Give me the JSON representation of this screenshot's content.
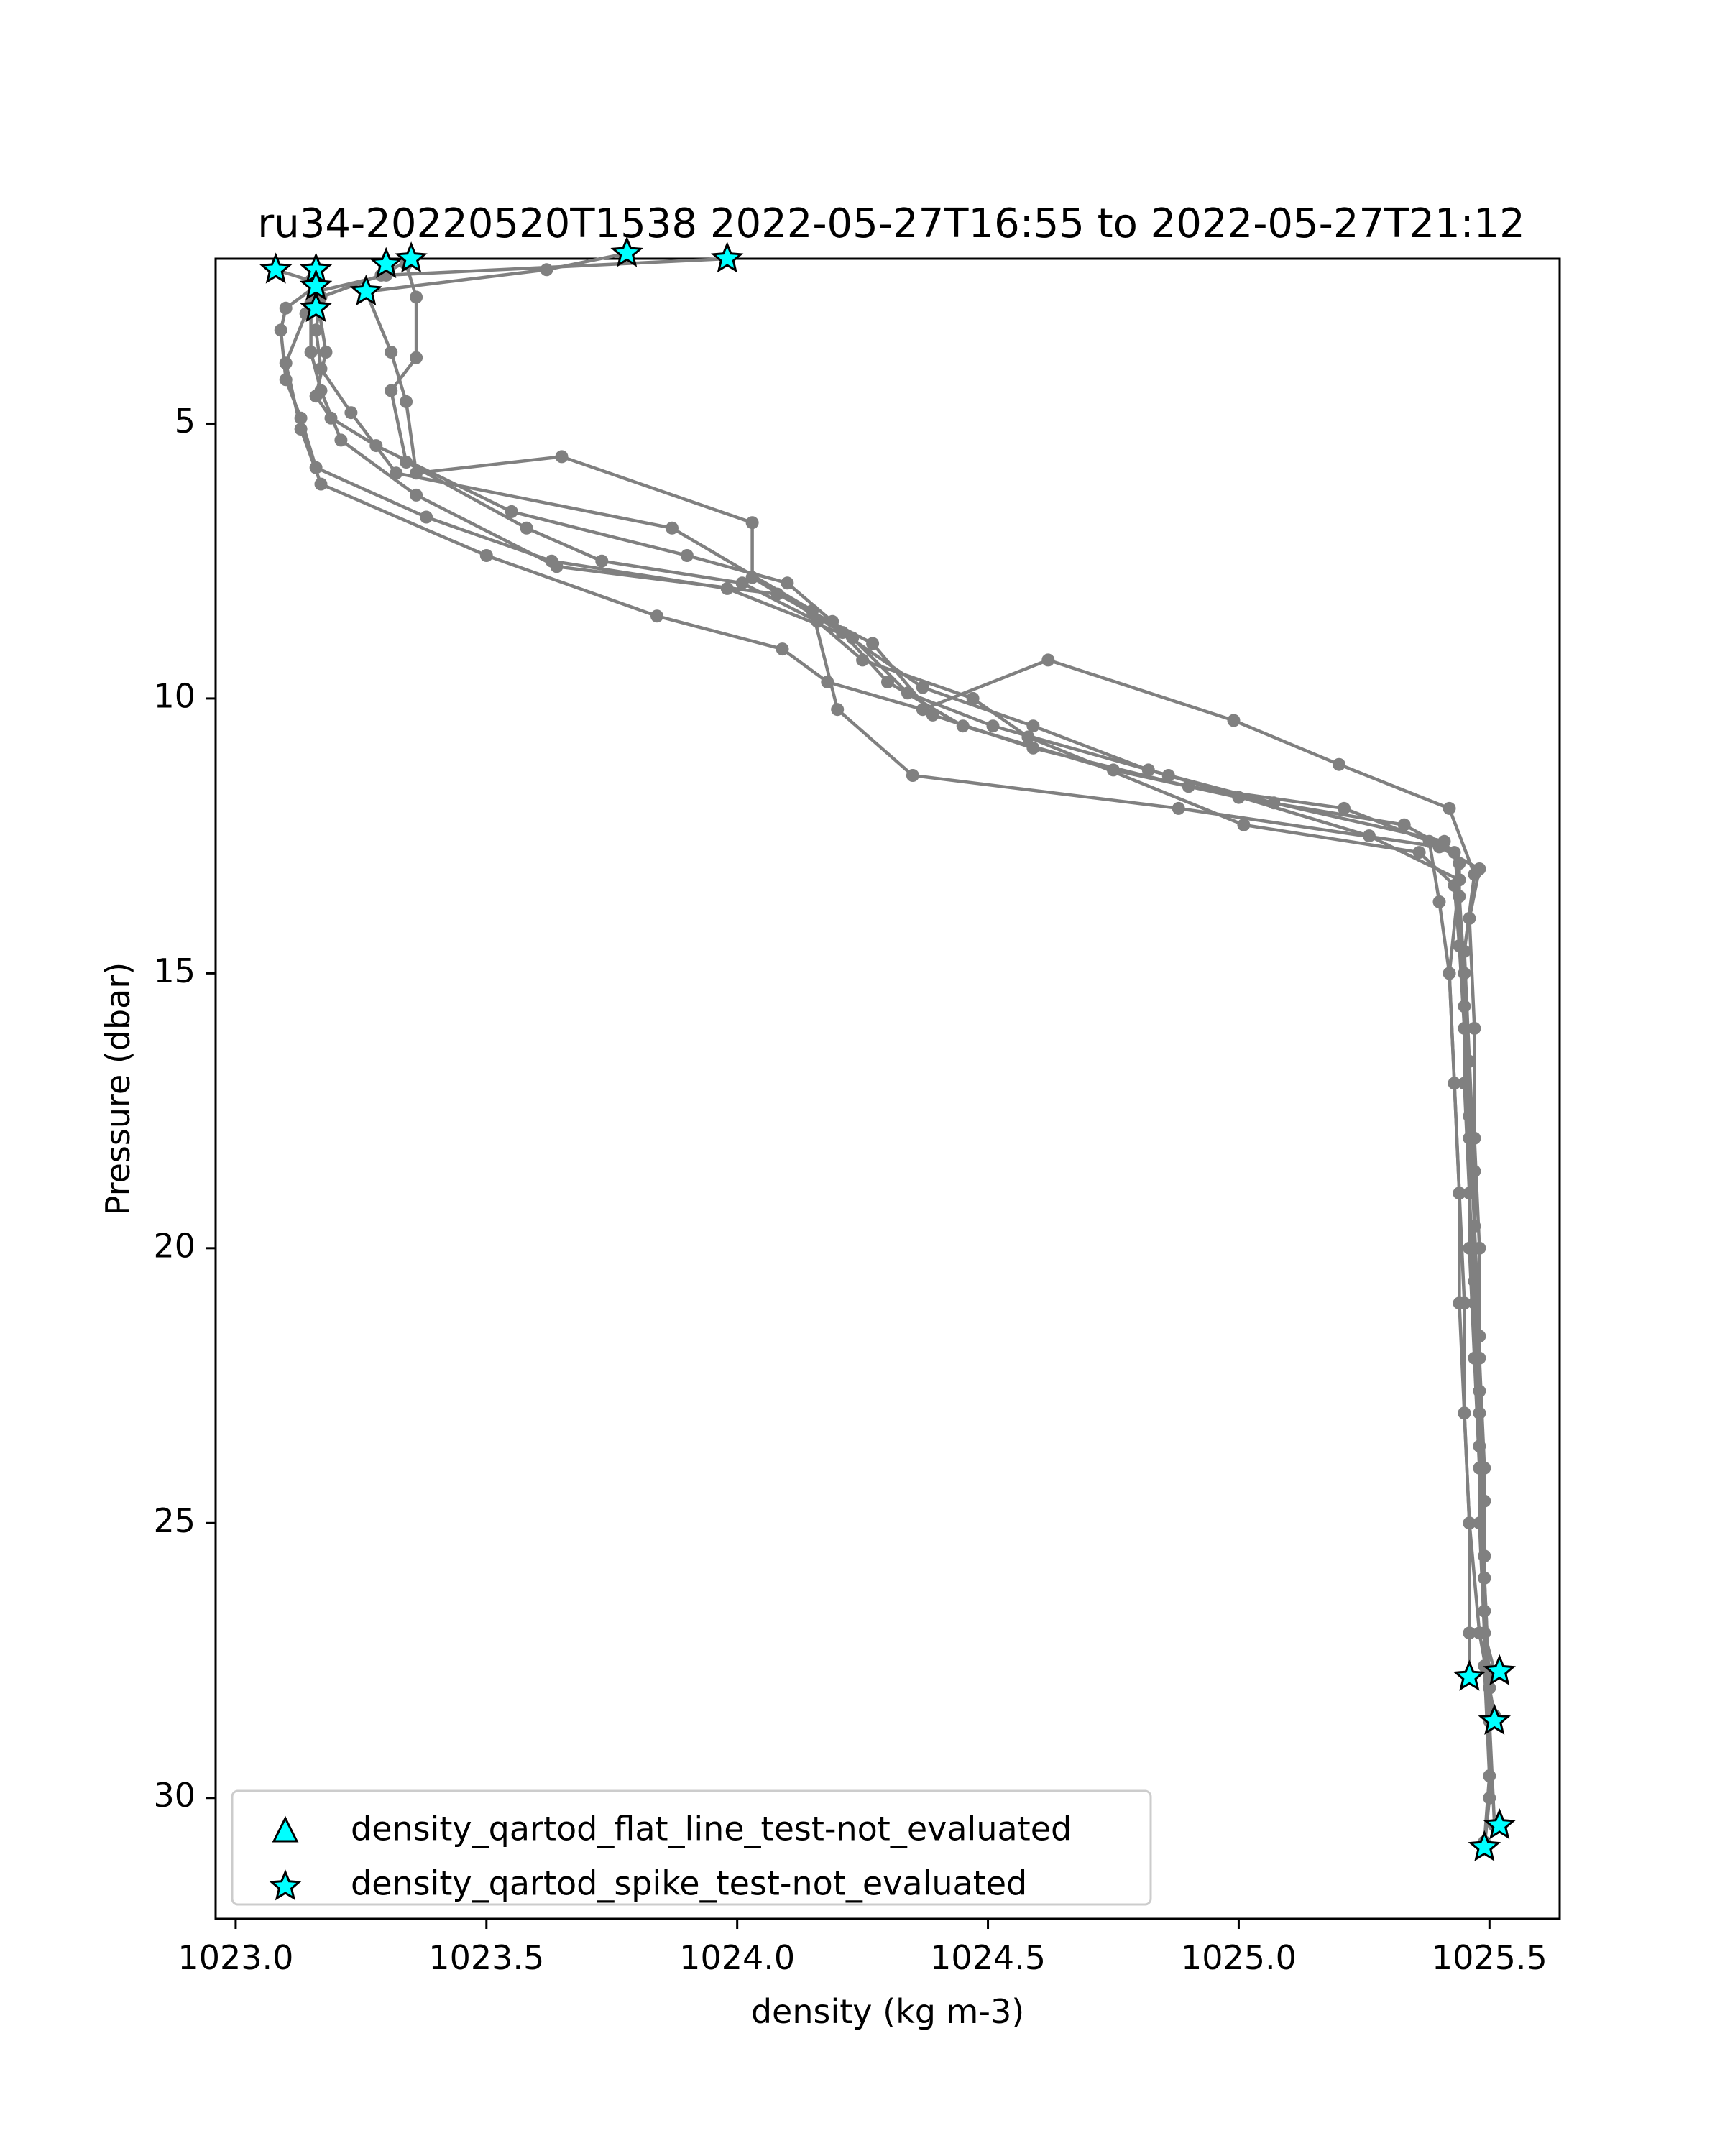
{
  "chart_data": {
    "type": "scatter",
    "title": "ru34-20220520T1538 2022-05-27T16:55 to 2022-05-27T21:12",
    "xlabel": "density (kg m-3)",
    "ylabel": "Pressure (dbar)",
    "xlim": [
      1022.96,
      1025.64
    ],
    "ylim": [
      32.2,
      2.0
    ],
    "y_inverted": true,
    "xticks": [
      1023.0,
      1023.5,
      1024.0,
      1024.5,
      1025.0,
      1025.5
    ],
    "xtick_labels": [
      "1023.0",
      "1023.5",
      "1024.0",
      "1024.5",
      "1025.0",
      "1025.5"
    ],
    "yticks": [
      5,
      10,
      15,
      20,
      25,
      30
    ],
    "ytick_labels": [
      "5",
      "10",
      "15",
      "20",
      "25",
      "30"
    ],
    "grid": false,
    "legend_position": "lower-left",
    "colors": {
      "profile_line": "#808080",
      "flag_marker": "#00ffff",
      "marker_edge": "#000000"
    },
    "series": [
      {
        "style": "profile",
        "points": [
          [
            1023.98,
            2.0
          ],
          [
            1023.3,
            2.3
          ],
          [
            1023.16,
            2.6
          ],
          [
            1023.18,
            3.7
          ],
          [
            1023.16,
            4.5
          ],
          [
            1023.19,
            4.9
          ],
          [
            1023.28,
            5.4
          ],
          [
            1023.55,
            6.6
          ],
          [
            1023.9,
            7.4
          ],
          [
            1024.1,
            7.9
          ],
          [
            1024.19,
            8.6
          ],
          [
            1024.3,
            9.7
          ],
          [
            1024.45,
            10.5
          ],
          [
            1024.75,
            11.3
          ],
          [
            1025.0,
            11.8
          ],
          [
            1025.33,
            12.3
          ],
          [
            1025.43,
            12.8
          ],
          [
            1025.44,
            13.6
          ],
          [
            1025.45,
            15.0
          ],
          [
            1025.45,
            17.0
          ],
          [
            1025.46,
            19.0
          ],
          [
            1025.47,
            21.0
          ],
          [
            1025.48,
            23.0
          ],
          [
            1025.48,
            25.0
          ],
          [
            1025.49,
            27.0
          ],
          [
            1025.51,
            27.7
          ]
        ]
      },
      {
        "style": "profile",
        "points": [
          [
            1023.78,
            1.9
          ],
          [
            1023.62,
            2.2
          ],
          [
            1023.26,
            2.6
          ],
          [
            1023.31,
            3.7
          ],
          [
            1023.34,
            4.6
          ],
          [
            1023.36,
            5.9
          ],
          [
            1023.65,
            5.6
          ],
          [
            1024.03,
            6.8
          ],
          [
            1024.03,
            7.8
          ],
          [
            1024.21,
            8.8
          ],
          [
            1024.37,
            9.8
          ],
          [
            1024.59,
            10.5
          ],
          [
            1024.82,
            11.3
          ],
          [
            1025.07,
            11.9
          ],
          [
            1025.41,
            12.6
          ],
          [
            1025.44,
            13.0
          ],
          [
            1025.44,
            14.5
          ],
          [
            1025.45,
            16.0
          ],
          [
            1025.46,
            18.0
          ],
          [
            1025.46,
            20.0
          ],
          [
            1025.47,
            22.0
          ],
          [
            1025.48,
            24.0
          ],
          [
            1025.49,
            26.0
          ],
          [
            1025.5,
            28.0
          ],
          [
            1025.51,
            28.6
          ]
        ]
      },
      {
        "style": "profile",
        "points": [
          [
            1023.35,
            2.0
          ],
          [
            1023.29,
            2.3
          ],
          [
            1023.17,
            2.7
          ],
          [
            1023.16,
            3.3
          ],
          [
            1023.17,
            4.0
          ],
          [
            1023.23,
            4.8
          ],
          [
            1023.32,
            5.9
          ],
          [
            1023.87,
            6.9
          ],
          [
            1024.15,
            8.4
          ],
          [
            1024.2,
            10.2
          ],
          [
            1024.35,
            11.4
          ],
          [
            1024.88,
            12.0
          ],
          [
            1025.4,
            12.7
          ],
          [
            1025.48,
            13.1
          ],
          [
            1025.46,
            14.0
          ],
          [
            1025.47,
            16.0
          ],
          [
            1025.47,
            18.0
          ],
          [
            1025.48,
            20.0
          ],
          [
            1025.48,
            22.0
          ],
          [
            1025.49,
            24.0
          ],
          [
            1025.49,
            26.0
          ],
          [
            1025.5,
            28.0
          ],
          [
            1025.5,
            30.0
          ],
          [
            1025.49,
            30.9
          ]
        ]
      },
      {
        "style": "profile",
        "points": [
          [
            1023.16,
            2.2
          ],
          [
            1023.16,
            2.5
          ],
          [
            1023.1,
            2.9
          ],
          [
            1023.09,
            3.3
          ],
          [
            1023.1,
            4.2
          ],
          [
            1023.13,
            4.9
          ],
          [
            1023.16,
            5.8
          ],
          [
            1023.38,
            6.7
          ],
          [
            1023.63,
            7.5
          ],
          [
            1023.98,
            8.0
          ],
          [
            1024.23,
            8.9
          ],
          [
            1024.34,
            9.9
          ],
          [
            1024.51,
            10.5
          ],
          [
            1024.86,
            11.4
          ],
          [
            1025.26,
            12.5
          ],
          [
            1025.44,
            13.3
          ],
          [
            1025.42,
            15.0
          ],
          [
            1025.43,
            17.0
          ],
          [
            1025.44,
            19.0
          ],
          [
            1025.45,
            21.0
          ],
          [
            1025.45,
            23.0
          ],
          [
            1025.46,
            25.0
          ],
          [
            1025.46,
            27.0
          ],
          [
            1025.46,
            27.8
          ]
        ]
      },
      {
        "style": "profile",
        "points": [
          [
            1023.08,
            2.2
          ],
          [
            1023.15,
            2.4
          ],
          [
            1023.15,
            2.8
          ],
          [
            1023.15,
            3.7
          ],
          [
            1023.17,
            4.4
          ],
          [
            1023.21,
            5.3
          ],
          [
            1023.36,
            6.3
          ],
          [
            1023.64,
            7.6
          ],
          [
            1024.08,
            8.1
          ],
          [
            1024.27,
            9.0
          ],
          [
            1024.39,
            10.3
          ],
          [
            1024.59,
            10.9
          ],
          [
            1024.9,
            11.6
          ],
          [
            1025.21,
            12.0
          ],
          [
            1025.38,
            12.6
          ],
          [
            1025.4,
            13.7
          ],
          [
            1025.42,
            15.0
          ],
          [
            1025.43,
            17.0
          ],
          [
            1025.44,
            19.0
          ],
          [
            1025.44,
            21.0
          ],
          [
            1025.45,
            23.0
          ],
          [
            1025.46,
            25.0
          ],
          [
            1025.48,
            27.0
          ],
          [
            1025.51,
            28.5
          ]
        ]
      },
      {
        "style": "profile",
        "points": [
          [
            1023.16,
            2.5
          ],
          [
            1023.14,
            3.0
          ],
          [
            1023.1,
            3.9
          ],
          [
            1023.13,
            5.1
          ],
          [
            1023.17,
            6.1
          ],
          [
            1023.5,
            7.4
          ],
          [
            1023.84,
            8.5
          ],
          [
            1024.09,
            9.1
          ],
          [
            1024.18,
            9.7
          ],
          [
            1024.37,
            10.2
          ],
          [
            1024.62,
            9.3
          ],
          [
            1024.99,
            10.4
          ],
          [
            1025.2,
            11.2
          ],
          [
            1025.42,
            12.0
          ],
          [
            1025.47,
            13.2
          ],
          [
            1025.45,
            14.6
          ],
          [
            1025.46,
            16.6
          ],
          [
            1025.47,
            18.6
          ],
          [
            1025.47,
            20.6
          ],
          [
            1025.48,
            22.6
          ],
          [
            1025.49,
            24.6
          ],
          [
            1025.49,
            26.6
          ],
          [
            1025.5,
            28.6
          ],
          [
            1025.51,
            30.5
          ]
        ]
      },
      {
        "style": "profile",
        "points": [
          [
            1023.34,
            2.1
          ],
          [
            1023.36,
            2.7
          ],
          [
            1023.36,
            3.8
          ],
          [
            1023.31,
            4.4
          ],
          [
            1023.34,
            5.7
          ],
          [
            1023.58,
            6.9
          ],
          [
            1023.73,
            7.5
          ],
          [
            1024.01,
            7.9
          ],
          [
            1024.16,
            8.6
          ],
          [
            1024.25,
            9.3
          ],
          [
            1024.47,
            10.0
          ],
          [
            1024.58,
            10.7
          ],
          [
            1025.01,
            12.3
          ],
          [
            1025.36,
            12.8
          ],
          [
            1025.43,
            13.4
          ],
          [
            1025.45,
            15.6
          ],
          [
            1025.46,
            17.6
          ],
          [
            1025.47,
            19.6
          ],
          [
            1025.48,
            21.6
          ],
          [
            1025.48,
            23.6
          ],
          [
            1025.49,
            25.6
          ],
          [
            1025.49,
            27.6
          ],
          [
            1025.5,
            29.6
          ],
          [
            1025.49,
            30.8
          ]
        ]
      }
    ],
    "flagged_points": [
      {
        "test": "density_qartod_spike_test-not_evaluated",
        "marker": "star",
        "points": [
          [
            1023.98,
            2.0
          ],
          [
            1023.78,
            1.9
          ],
          [
            1023.35,
            2.0
          ],
          [
            1023.3,
            2.1
          ],
          [
            1023.16,
            2.2
          ],
          [
            1023.08,
            2.2
          ],
          [
            1023.16,
            2.5
          ],
          [
            1023.26,
            2.6
          ],
          [
            1023.16,
            2.9
          ],
          [
            1025.46,
            27.8
          ],
          [
            1025.52,
            27.7
          ],
          [
            1025.51,
            28.6
          ],
          [
            1025.52,
            30.5
          ],
          [
            1025.49,
            30.9
          ]
        ]
      }
    ],
    "legend": [
      {
        "marker": "triangle",
        "label": "density_qartod_flat_line_test-not_evaluated"
      },
      {
        "marker": "star",
        "label": "density_qartod_spike_test-not_evaluated"
      }
    ]
  }
}
